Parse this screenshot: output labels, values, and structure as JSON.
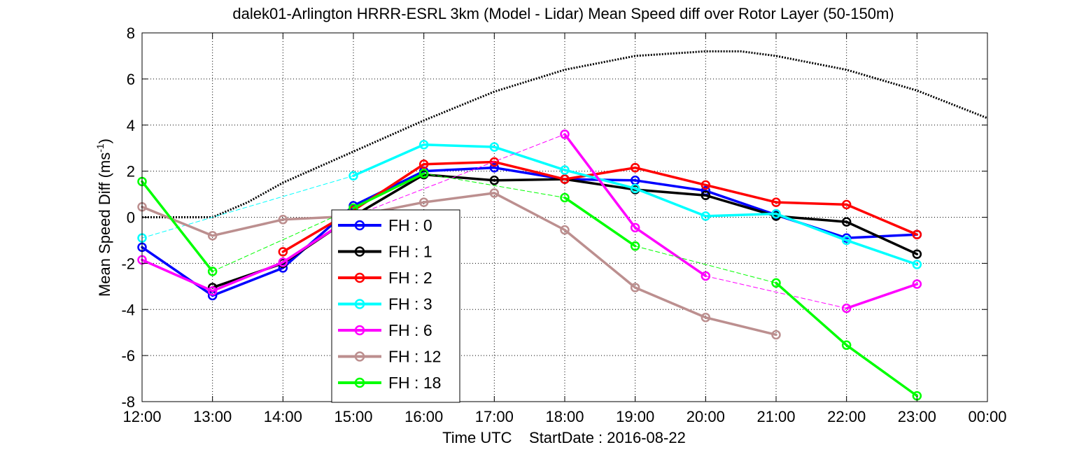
{
  "chart_data": {
    "type": "line",
    "title": "dalek01-Arlington HRRR-ESRL 3km (Model - Lidar) Mean Speed diff over Rotor Layer (50-150m)",
    "xlabel": "Time UTC    StartDate : 2016-08-22",
    "ylabel_main": "Mean Speed Diff (ms",
    "ylabel_sup": "-1",
    "ylabel_close": ")",
    "ylim": [
      -8,
      8
    ],
    "yticks": [
      -8,
      -6,
      -4,
      -2,
      0,
      2,
      4,
      6,
      8
    ],
    "xticks": [
      "12:00",
      "13:00",
      "14:00",
      "15:00",
      "16:00",
      "17:00",
      "18:00",
      "19:00",
      "20:00",
      "21:00",
      "22:00",
      "23:00",
      "00:00"
    ],
    "grid": true,
    "legend_position": "lower-left",
    "reference_curve": {
      "style": "black dotted",
      "x": [
        12.0,
        13.0,
        13.5,
        14.0,
        15.0,
        16.0,
        17.0,
        18.0,
        19.0,
        20.0,
        20.5,
        21.0,
        22.0,
        23.0,
        24.0
      ],
      "y": [
        0.0,
        0.0,
        0.65,
        1.5,
        2.85,
        4.2,
        5.45,
        6.4,
        7.0,
        7.2,
        7.2,
        7.0,
        6.4,
        5.5,
        4.3
      ]
    },
    "series": [
      {
        "name": "FH : 0",
        "color": "#0000ff",
        "x": [
          12,
          13,
          14,
          15,
          16,
          17,
          18,
          19,
          20,
          21,
          22,
          23
        ],
        "y": [
          -1.3,
          -3.4,
          -2.2,
          0.5,
          2.0,
          2.15,
          1.65,
          1.6,
          1.15,
          0.1,
          -0.9,
          -0.75
        ]
      },
      {
        "name": "FH : 1",
        "color": "#000000",
        "x": [
          13,
          14,
          15,
          16,
          17,
          18,
          19,
          20,
          21,
          22,
          23
        ],
        "y": [
          -3.05,
          -2.0,
          0.05,
          1.85,
          1.6,
          1.65,
          1.2,
          0.95,
          0.05,
          -0.2,
          -1.6
        ]
      },
      {
        "name": "FH : 2",
        "color": "#ff0000",
        "x": [
          14,
          15,
          16,
          17,
          18,
          19,
          20,
          21,
          22,
          23
        ],
        "y": [
          -1.5,
          0.3,
          2.3,
          2.4,
          1.65,
          2.15,
          1.4,
          0.65,
          0.55,
          -0.75
        ]
      },
      {
        "name": "FH : 3",
        "color": "#00ffff",
        "x": [
          12,
          15,
          16,
          17,
          18,
          19,
          20,
          21,
          22,
          23
        ],
        "y": [
          -0.9,
          1.8,
          3.15,
          3.05,
          2.05,
          1.25,
          0.05,
          0.15,
          -1.0,
          -2.05
        ]
      },
      {
        "name": "FH : 6",
        "color": "#ff00ff",
        "x": [
          12,
          13,
          14,
          15,
          18,
          19,
          20,
          22,
          23
        ],
        "y": [
          -1.85,
          -3.2,
          -1.95,
          0.05,
          3.6,
          -0.45,
          -2.55,
          -3.95,
          -2.9
        ]
      },
      {
        "name": "FH : 12",
        "color": "#bc8f8f",
        "x": [
          12,
          13,
          14,
          15,
          16,
          17,
          18,
          19,
          20,
          21
        ],
        "y": [
          0.45,
          -0.8,
          -0.1,
          0.05,
          0.65,
          1.05,
          -0.55,
          -3.05,
          -4.35,
          -5.1
        ]
      },
      {
        "name": "FH : 18",
        "color": "#00ff00",
        "x": [
          12,
          13,
          15,
          16,
          18,
          19,
          21,
          22,
          23
        ],
        "y": [
          1.55,
          -2.35,
          0.4,
          1.9,
          0.85,
          -1.25,
          -2.85,
          -5.55,
          -7.75
        ]
      }
    ]
  }
}
